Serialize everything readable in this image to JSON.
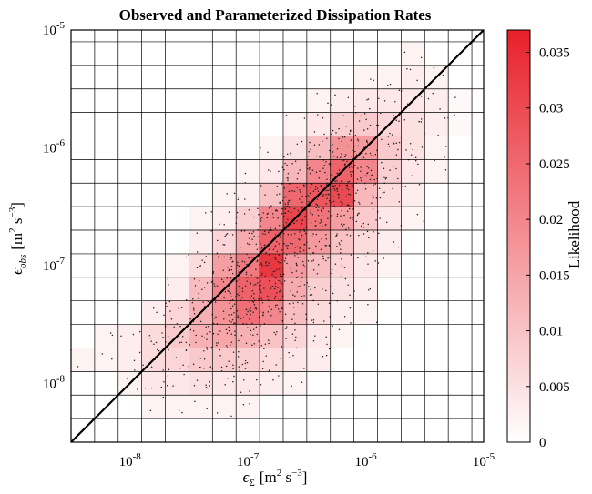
{
  "chart_data": {
    "type": "heatmap",
    "title": "Observed and Parameterized Dissipation Rates",
    "xlabel": {
      "symbol": "ϵ",
      "sub": "Σ",
      "unit_prefix": "[m",
      "unit_exp1": "2",
      "unit_mid": " s",
      "unit_exp2": "−3",
      "unit_suffix": "]"
    },
    "ylabel": {
      "symbol": "ϵ",
      "sub": "obs",
      "unit_prefix": "[m",
      "unit_exp1": "2",
      "unit_mid": " s",
      "unit_exp2": "−3",
      "unit_suffix": "]"
    },
    "x_scale": "log",
    "y_scale": "log",
    "xlim_log10": [
      -8.5,
      -5
    ],
    "ylim_log10": [
      -8.5,
      -5
    ],
    "bin_width_log10": 0.2,
    "x_ticks": [
      {
        "base": "10",
        "exp": "-8",
        "v": -8
      },
      {
        "base": "10",
        "exp": "-7",
        "v": -7
      },
      {
        "base": "10",
        "exp": "-6",
        "v": -6
      },
      {
        "base": "10",
        "exp": "-5",
        "v": -5
      }
    ],
    "y_ticks": [
      {
        "base": "10",
        "exp": "-8",
        "v": -8
      },
      {
        "base": "10",
        "exp": "-7",
        "v": -7
      },
      {
        "base": "10",
        "exp": "-6",
        "v": -6
      },
      {
        "base": "10",
        "exp": "-5",
        "v": -5
      }
    ],
    "grid": true,
    "reference_line": "1:1",
    "colorbar": {
      "label": "Likelihood",
      "min": 0,
      "max": 0.037,
      "ticks": [
        "0",
        "0.005",
        "0.01",
        "0.015",
        "0.02",
        "0.025",
        "0.03",
        "0.035"
      ],
      "tick_values": [
        0,
        0.005,
        0.01,
        0.015,
        0.02,
        0.025,
        0.03,
        0.035
      ],
      "color_low": "#ffffff",
      "color_high": "#e8202a"
    },
    "cells": [
      {
        "x": -8.4,
        "y": -7.8,
        "v": 0.002
      },
      {
        "x": -8.2,
        "y": -7.8,
        "v": 0.002
      },
      {
        "x": -8.2,
        "y": -7.6,
        "v": 0.002
      },
      {
        "x": -8.0,
        "y": -8.0,
        "v": 0.002
      },
      {
        "x": -8.0,
        "y": -7.8,
        "v": 0.003
      },
      {
        "x": -8.0,
        "y": -7.6,
        "v": 0.003
      },
      {
        "x": -7.8,
        "y": -8.2,
        "v": 0.002
      },
      {
        "x": -7.8,
        "y": -8.0,
        "v": 0.004
      },
      {
        "x": -7.8,
        "y": -7.8,
        "v": 0.006
      },
      {
        "x": -7.8,
        "y": -7.6,
        "v": 0.006
      },
      {
        "x": -7.8,
        "y": -7.4,
        "v": 0.003
      },
      {
        "x": -7.6,
        "y": -8.2,
        "v": 0.002
      },
      {
        "x": -7.6,
        "y": -8.0,
        "v": 0.004
      },
      {
        "x": -7.6,
        "y": -7.8,
        "v": 0.007
      },
      {
        "x": -7.6,
        "y": -7.6,
        "v": 0.009
      },
      {
        "x": -7.6,
        "y": -7.4,
        "v": 0.007
      },
      {
        "x": -7.6,
        "y": -7.2,
        "v": 0.003
      },
      {
        "x": -7.6,
        "y": -7.0,
        "v": 0.002
      },
      {
        "x": -7.4,
        "y": -8.2,
        "v": 0.002
      },
      {
        "x": -7.4,
        "y": -8.0,
        "v": 0.005
      },
      {
        "x": -7.4,
        "y": -7.8,
        "v": 0.009
      },
      {
        "x": -7.4,
        "y": -7.6,
        "v": 0.013
      },
      {
        "x": -7.4,
        "y": -7.4,
        "v": 0.013
      },
      {
        "x": -7.4,
        "y": -7.2,
        "v": 0.011
      },
      {
        "x": -7.4,
        "y": -7.0,
        "v": 0.006
      },
      {
        "x": -7.4,
        "y": -6.8,
        "v": 0.003
      },
      {
        "x": -7.4,
        "y": -6.6,
        "v": 0.002
      },
      {
        "x": -7.2,
        "y": -8.2,
        "v": 0.002
      },
      {
        "x": -7.2,
        "y": -8.0,
        "v": 0.004
      },
      {
        "x": -7.2,
        "y": -7.8,
        "v": 0.009
      },
      {
        "x": -7.2,
        "y": -7.6,
        "v": 0.015
      },
      {
        "x": -7.2,
        "y": -7.4,
        "v": 0.018
      },
      {
        "x": -7.2,
        "y": -7.2,
        "v": 0.02
      },
      {
        "x": -7.2,
        "y": -7.0,
        "v": 0.016
      },
      {
        "x": -7.2,
        "y": -6.8,
        "v": 0.007
      },
      {
        "x": -7.2,
        "y": -6.6,
        "v": 0.003
      },
      {
        "x": -7.2,
        "y": -6.4,
        "v": 0.002
      },
      {
        "x": -7.0,
        "y": -8.2,
        "v": 0.002
      },
      {
        "x": -7.0,
        "y": -8.0,
        "v": 0.004
      },
      {
        "x": -7.0,
        "y": -7.8,
        "v": 0.008
      },
      {
        "x": -7.0,
        "y": -7.6,
        "v": 0.013
      },
      {
        "x": -7.0,
        "y": -7.4,
        "v": 0.024
      },
      {
        "x": -7.0,
        "y": -7.2,
        "v": 0.026
      },
      {
        "x": -7.0,
        "y": -7.0,
        "v": 0.022
      },
      {
        "x": -7.0,
        "y": -6.8,
        "v": 0.014
      },
      {
        "x": -7.0,
        "y": -6.6,
        "v": 0.008
      },
      {
        "x": -7.0,
        "y": -6.4,
        "v": 0.003
      },
      {
        "x": -7.0,
        "y": -6.2,
        "v": 0.002
      },
      {
        "x": -6.8,
        "y": -8.0,
        "v": 0.003
      },
      {
        "x": -6.8,
        "y": -7.8,
        "v": 0.006
      },
      {
        "x": -6.8,
        "y": -7.6,
        "v": 0.01
      },
      {
        "x": -6.8,
        "y": -7.4,
        "v": 0.02
      },
      {
        "x": -6.8,
        "y": -7.2,
        "v": 0.029
      },
      {
        "x": -6.8,
        "y": -7.0,
        "v": 0.033
      },
      {
        "x": -6.8,
        "y": -6.8,
        "v": 0.026
      },
      {
        "x": -6.8,
        "y": -6.6,
        "v": 0.02
      },
      {
        "x": -6.8,
        "y": -6.4,
        "v": 0.01
      },
      {
        "x": -6.8,
        "y": -6.2,
        "v": 0.004
      },
      {
        "x": -6.8,
        "y": -6.0,
        "v": 0.002
      },
      {
        "x": -6.6,
        "y": -8.0,
        "v": 0.002
      },
      {
        "x": -6.6,
        "y": -7.8,
        "v": 0.004
      },
      {
        "x": -6.6,
        "y": -7.6,
        "v": 0.007
      },
      {
        "x": -6.6,
        "y": -7.4,
        "v": 0.011
      },
      {
        "x": -6.6,
        "y": -7.2,
        "v": 0.014
      },
      {
        "x": -6.6,
        "y": -7.0,
        "v": 0.017
      },
      {
        "x": -6.6,
        "y": -6.8,
        "v": 0.025
      },
      {
        "x": -6.6,
        "y": -6.6,
        "v": 0.031
      },
      {
        "x": -6.6,
        "y": -6.4,
        "v": 0.025
      },
      {
        "x": -6.6,
        "y": -6.2,
        "v": 0.012
      },
      {
        "x": -6.6,
        "y": -6.0,
        "v": 0.005
      },
      {
        "x": -6.6,
        "y": -5.8,
        "v": 0.002
      },
      {
        "x": -6.4,
        "y": -7.8,
        "v": 0.003
      },
      {
        "x": -6.4,
        "y": -7.6,
        "v": 0.004
      },
      {
        "x": -6.4,
        "y": -7.4,
        "v": 0.006
      },
      {
        "x": -6.4,
        "y": -7.2,
        "v": 0.008
      },
      {
        "x": -6.4,
        "y": -7.0,
        "v": 0.011
      },
      {
        "x": -6.4,
        "y": -6.8,
        "v": 0.017
      },
      {
        "x": -6.4,
        "y": -6.6,
        "v": 0.023
      },
      {
        "x": -6.4,
        "y": -6.4,
        "v": 0.028
      },
      {
        "x": -6.4,
        "y": -6.2,
        "v": 0.02
      },
      {
        "x": -6.4,
        "y": -6.0,
        "v": 0.011
      },
      {
        "x": -6.4,
        "y": -5.8,
        "v": 0.004
      },
      {
        "x": -6.4,
        "y": -5.6,
        "v": 0.002
      },
      {
        "x": -6.2,
        "y": -7.6,
        "v": 0.002
      },
      {
        "x": -6.2,
        "y": -7.4,
        "v": 0.003
      },
      {
        "x": -6.2,
        "y": -7.2,
        "v": 0.005
      },
      {
        "x": -6.2,
        "y": -7.0,
        "v": 0.007
      },
      {
        "x": -6.2,
        "y": -6.8,
        "v": 0.01
      },
      {
        "x": -6.2,
        "y": -6.6,
        "v": 0.016
      },
      {
        "x": -6.2,
        "y": -6.4,
        "v": 0.03
      },
      {
        "x": -6.2,
        "y": -6.2,
        "v": 0.026
      },
      {
        "x": -6.2,
        "y": -6.0,
        "v": 0.018
      },
      {
        "x": -6.2,
        "y": -5.8,
        "v": 0.008
      },
      {
        "x": -6.2,
        "y": -5.6,
        "v": 0.003
      },
      {
        "x": -6.0,
        "y": -7.4,
        "v": 0.002
      },
      {
        "x": -6.0,
        "y": -7.2,
        "v": 0.003
      },
      {
        "x": -6.0,
        "y": -7.0,
        "v": 0.004
      },
      {
        "x": -6.0,
        "y": -6.8,
        "v": 0.006
      },
      {
        "x": -6.0,
        "y": -6.6,
        "v": 0.009
      },
      {
        "x": -6.0,
        "y": -6.4,
        "v": 0.012
      },
      {
        "x": -6.0,
        "y": -6.2,
        "v": 0.02
      },
      {
        "x": -6.0,
        "y": -6.0,
        "v": 0.017
      },
      {
        "x": -6.0,
        "y": -5.8,
        "v": 0.009
      },
      {
        "x": -6.0,
        "y": -5.6,
        "v": 0.004
      },
      {
        "x": -6.0,
        "y": -5.4,
        "v": 0.002
      },
      {
        "x": -5.8,
        "y": -7.0,
        "v": 0.002
      },
      {
        "x": -5.8,
        "y": -6.8,
        "v": 0.003
      },
      {
        "x": -5.8,
        "y": -6.6,
        "v": 0.004
      },
      {
        "x": -5.8,
        "y": -6.4,
        "v": 0.006
      },
      {
        "x": -5.8,
        "y": -6.2,
        "v": 0.008
      },
      {
        "x": -5.8,
        "y": -6.0,
        "v": 0.009
      },
      {
        "x": -5.8,
        "y": -5.8,
        "v": 0.007
      },
      {
        "x": -5.8,
        "y": -5.6,
        "v": 0.004
      },
      {
        "x": -5.8,
        "y": -5.4,
        "v": 0.002
      },
      {
        "x": -5.6,
        "y": -6.6,
        "v": 0.002
      },
      {
        "x": -5.6,
        "y": -6.4,
        "v": 0.003
      },
      {
        "x": -5.6,
        "y": -6.2,
        "v": 0.004
      },
      {
        "x": -5.6,
        "y": -6.0,
        "v": 0.005
      },
      {
        "x": -5.6,
        "y": -5.8,
        "v": 0.005
      },
      {
        "x": -5.6,
        "y": -5.6,
        "v": 0.004
      },
      {
        "x": -5.6,
        "y": -5.4,
        "v": 0.003
      },
      {
        "x": -5.6,
        "y": -5.2,
        "v": 0.002
      },
      {
        "x": -5.4,
        "y": -6.2,
        "v": 0.002
      },
      {
        "x": -5.4,
        "y": -6.0,
        "v": 0.002
      },
      {
        "x": -5.4,
        "y": -5.8,
        "v": 0.003
      },
      {
        "x": -5.4,
        "y": -5.6,
        "v": 0.003
      },
      {
        "x": -5.4,
        "y": -5.4,
        "v": 0.002
      },
      {
        "x": -5.2,
        "y": -5.8,
        "v": 0.001
      },
      {
        "x": -5.2,
        "y": -5.6,
        "v": 0.001
      }
    ]
  }
}
